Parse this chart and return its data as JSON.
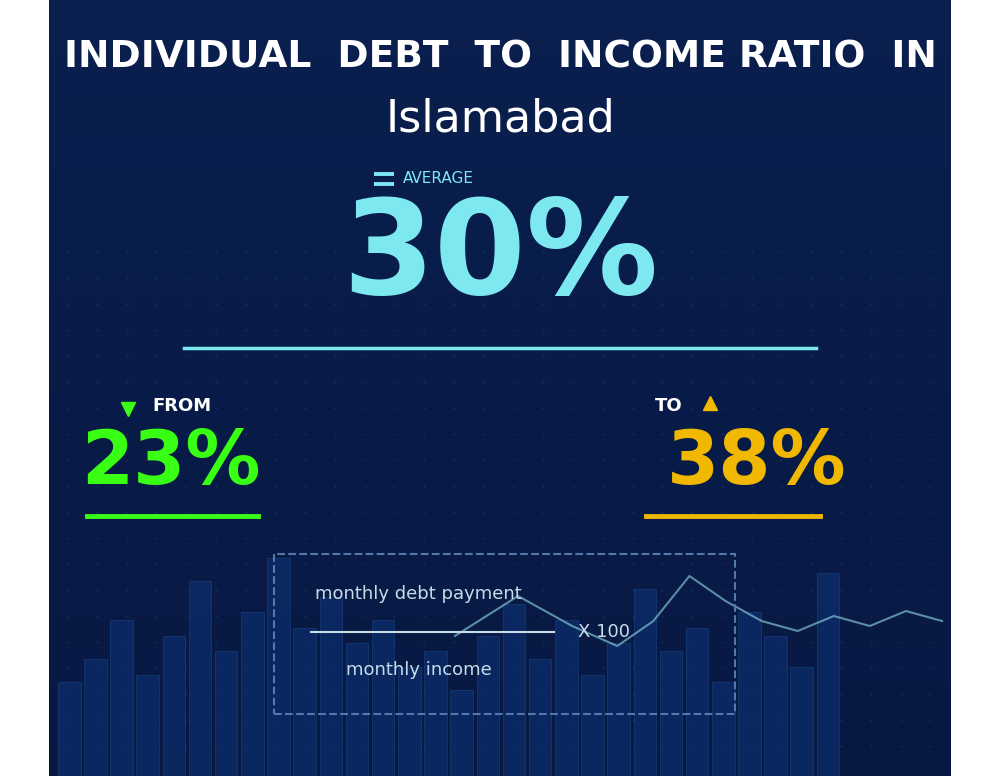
{
  "title_line1": "INDIVIDUAL  DEBT  TO  INCOME RATIO  IN",
  "title_line2": "Islamabad",
  "average_label": "AVERAGE",
  "average_value": "30%",
  "from_label": "FROM",
  "from_value": "23%",
  "to_label": "TO",
  "to_value": "38%",
  "formula_numerator": "monthly debt payment",
  "formula_denominator": "monthly income",
  "formula_multiplier": "X 100",
  "bg_color_top": "#0a1f4e",
  "bg_color_bottom": "#071842",
  "title_color": "#ffffff",
  "average_value_color": "#7ee8f0",
  "from_color": "#39ff14",
  "to_color": "#f0b800",
  "formula_color": "#c8dce8",
  "line_color": "#7ee8f0",
  "divider_color_green": "#39ff14",
  "divider_color_gold": "#f0b800",
  "line_chart_color": "#88ccdd"
}
